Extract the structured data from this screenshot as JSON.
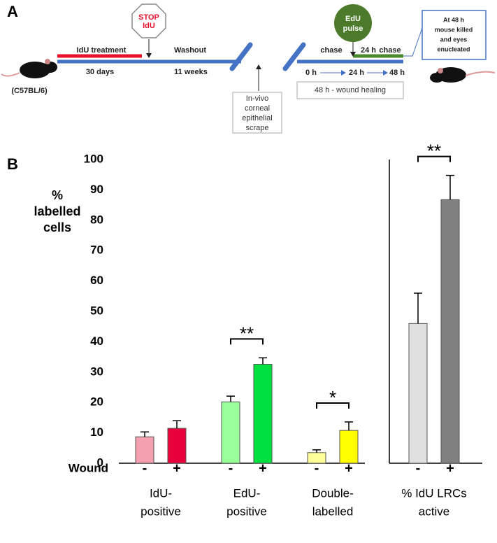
{
  "panel_a": {
    "panel_label": "A",
    "mouse_strain": "(C57BL/6)",
    "treatment": "IdU treatment",
    "treatment_duration": "30 days",
    "stop_sign": [
      "STOP",
      "IdU"
    ],
    "washout": "Washout",
    "washout_duration": "11 weeks",
    "scrape": [
      "In-vivo",
      "corneal",
      "epithelial",
      "scrape"
    ],
    "pulse": [
      "EdU",
      "pulse"
    ],
    "chase_1": "chase",
    "chase_2_time": "24 h",
    "chase_2": "chase",
    "times": [
      "0 h",
      "24 h",
      "48 h"
    ],
    "healing": "48 h -  wound healing",
    "outcome": [
      "At 48 h",
      "mouse killed",
      "and eyes",
      "enucleated"
    ]
  },
  "chart_data": {
    "type": "bar",
    "panel_label": "B",
    "y_label": [
      "%",
      "labelled",
      "cells"
    ],
    "x_label": "Wound",
    "conditions": [
      "-",
      "+"
    ],
    "ylim": [
      0,
      100
    ],
    "yticks": [
      0,
      10,
      20,
      30,
      40,
      50,
      60,
      70,
      80,
      90,
      100
    ],
    "groups": [
      {
        "label": [
          "IdU-",
          "positive"
        ],
        "significance": null,
        "bars": [
          {
            "value": 8.7,
            "error": 1.6,
            "color": "#f4a0b0"
          },
          {
            "value": 11.5,
            "error": 2.5,
            "color": "#e8003c"
          }
        ]
      },
      {
        "label": [
          "EdU-",
          "positive"
        ],
        "significance": "**",
        "bars": [
          {
            "value": 20.2,
            "error": 1.9,
            "color": "#99ff99"
          },
          {
            "value": 32.6,
            "error": 2.1,
            "color": "#00e040"
          }
        ]
      },
      {
        "label": [
          "Double-",
          "labelled"
        ],
        "significance": "*",
        "bars": [
          {
            "value": 3.5,
            "error": 0.9,
            "color": "#ffff99"
          },
          {
            "value": 10.8,
            "error": 2.8,
            "color": "#ffff00"
          }
        ]
      },
      {
        "label": [
          "% IdU LRCs",
          "active"
        ],
        "significance": "**",
        "bars": [
          {
            "value": 46,
            "error": 10,
            "color": "#e0e0e0"
          },
          {
            "value": 86.8,
            "error": 8,
            "color": "#808080"
          }
        ]
      }
    ]
  }
}
